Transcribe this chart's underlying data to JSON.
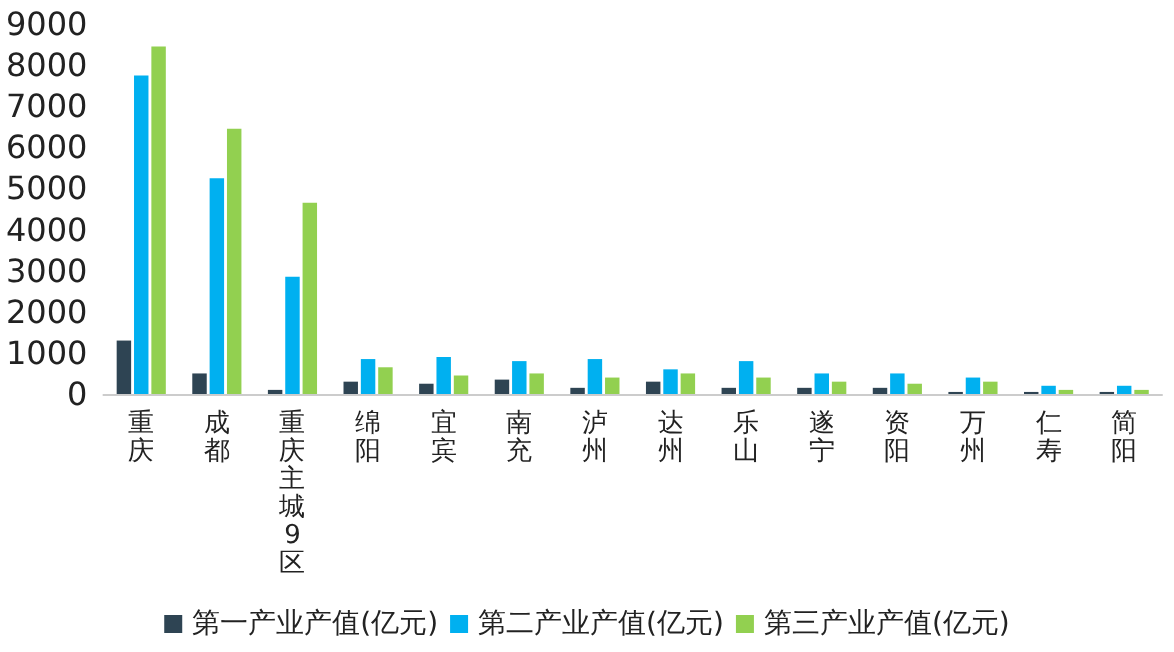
{
  "chart_data": {
    "type": "bar",
    "categories": [
      "重庆",
      "成都",
      "重庆主城9区",
      "绵阳",
      "宜宾",
      "南充",
      "泸州",
      "达州",
      "乐山",
      "遂宁",
      "资阳",
      "万州",
      "仁寿",
      "简阳"
    ],
    "series": [
      {
        "name": "第一产业产值(亿元)",
        "color": "#2e4453",
        "values": [
          1300,
          500,
          100,
          300,
          250,
          350,
          150,
          300,
          150,
          150,
          150,
          50,
          50,
          50
        ]
      },
      {
        "name": "第二产业产值(亿元)",
        "color": "#00b0f0",
        "values": [
          7750,
          5250,
          2850,
          850,
          900,
          800,
          850,
          600,
          800,
          500,
          500,
          400,
          200,
          200
        ]
      },
      {
        "name": "第三产业产值(亿元)",
        "color": "#92d050",
        "values": [
          8450,
          6450,
          4650,
          650,
          450,
          500,
          400,
          500,
          400,
          300,
          250,
          300,
          100,
          100
        ]
      }
    ],
    "ylim": [
      0,
      9000
    ],
    "yticks": [
      0,
      1000,
      2000,
      3000,
      4000,
      5000,
      6000,
      7000,
      8000,
      9000
    ],
    "grid": false,
    "legend": "bottom"
  }
}
